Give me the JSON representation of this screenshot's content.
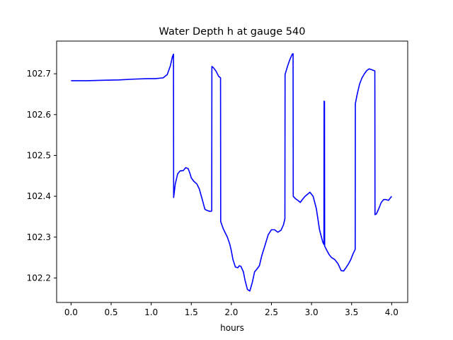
{
  "chart_data": {
    "type": "line",
    "title": "Water Depth h at gauge 540",
    "xlabel": "hours",
    "ylabel": "",
    "xlim": [
      -0.18,
      4.2
    ],
    "ylim": [
      102.14,
      102.78
    ],
    "xticks": [
      0.0,
      0.5,
      1.0,
      1.5,
      2.0,
      2.5,
      3.0,
      3.5,
      4.0
    ],
    "xtick_labels": [
      "0.0",
      "0.5",
      "1.0",
      "1.5",
      "2.0",
      "2.5",
      "3.0",
      "3.5",
      "4.0"
    ],
    "yticks": [
      102.2,
      102.3,
      102.4,
      102.5,
      102.6,
      102.7
    ],
    "ytick_labels": [
      "102.2",
      "102.3",
      "102.4",
      "102.5",
      "102.6",
      "102.7"
    ],
    "grid": false,
    "series": [
      {
        "color": "#0000ff",
        "x": [
          0.0,
          0.2,
          0.4,
          0.6,
          0.8,
          0.95,
          1.05,
          1.15,
          1.2,
          1.24,
          1.265,
          1.278,
          1.28,
          1.3,
          1.33,
          1.36,
          1.4,
          1.43,
          1.46,
          1.48,
          1.5,
          1.53,
          1.57,
          1.6,
          1.64,
          1.67,
          1.7,
          1.735,
          1.755,
          1.757,
          1.78,
          1.81,
          1.84,
          1.865,
          1.867,
          1.9,
          1.95,
          1.98,
          2.0,
          2.02,
          2.05,
          2.08,
          2.1,
          2.12,
          2.15,
          2.17,
          2.2,
          2.23,
          2.26,
          2.29,
          2.32,
          2.35,
          2.38,
          2.42,
          2.46,
          2.5,
          2.54,
          2.58,
          2.62,
          2.65,
          2.668,
          2.67,
          2.7,
          2.73,
          2.76,
          2.77,
          2.772,
          2.8,
          2.83,
          2.86,
          2.89,
          2.92,
          2.95,
          2.98,
          3.02,
          3.06,
          3.1,
          3.14,
          3.155,
          3.157,
          3.162,
          3.164,
          3.19,
          3.22,
          3.25,
          3.29,
          3.33,
          3.37,
          3.4,
          3.43,
          3.46,
          3.49,
          3.52,
          3.545,
          3.547,
          3.57,
          3.6,
          3.63,
          3.66,
          3.69,
          3.72,
          3.75,
          3.79,
          3.792,
          3.81,
          3.84,
          3.87,
          3.9,
          3.93,
          3.96,
          4.0
        ],
        "y": [
          102.683,
          102.683,
          102.684,
          102.685,
          102.687,
          102.688,
          102.688,
          102.69,
          102.698,
          102.72,
          102.742,
          102.748,
          102.397,
          102.43,
          102.455,
          102.462,
          102.463,
          102.47,
          102.468,
          102.458,
          102.445,
          102.437,
          102.43,
          102.418,
          102.39,
          102.368,
          102.365,
          102.363,
          102.364,
          102.718,
          102.714,
          102.706,
          102.694,
          102.69,
          102.338,
          102.32,
          102.3,
          102.283,
          102.266,
          102.245,
          102.227,
          102.225,
          102.23,
          102.228,
          102.215,
          102.195,
          102.172,
          102.168,
          102.188,
          102.215,
          102.222,
          102.23,
          102.255,
          102.28,
          102.306,
          102.318,
          102.318,
          102.312,
          102.317,
          102.33,
          102.345,
          102.698,
          102.718,
          102.735,
          102.748,
          102.749,
          102.4,
          102.394,
          102.39,
          102.385,
          102.393,
          102.4,
          102.405,
          102.41,
          102.4,
          102.37,
          102.318,
          102.288,
          102.282,
          102.633,
          102.632,
          102.278,
          102.268,
          102.257,
          102.25,
          102.245,
          102.235,
          102.218,
          102.217,
          102.225,
          102.234,
          102.245,
          102.26,
          102.27,
          102.627,
          102.65,
          102.675,
          102.69,
          102.7,
          102.708,
          102.712,
          102.71,
          102.707,
          102.355,
          102.357,
          102.37,
          102.385,
          102.392,
          102.392,
          102.39,
          102.4
        ]
      }
    ]
  }
}
